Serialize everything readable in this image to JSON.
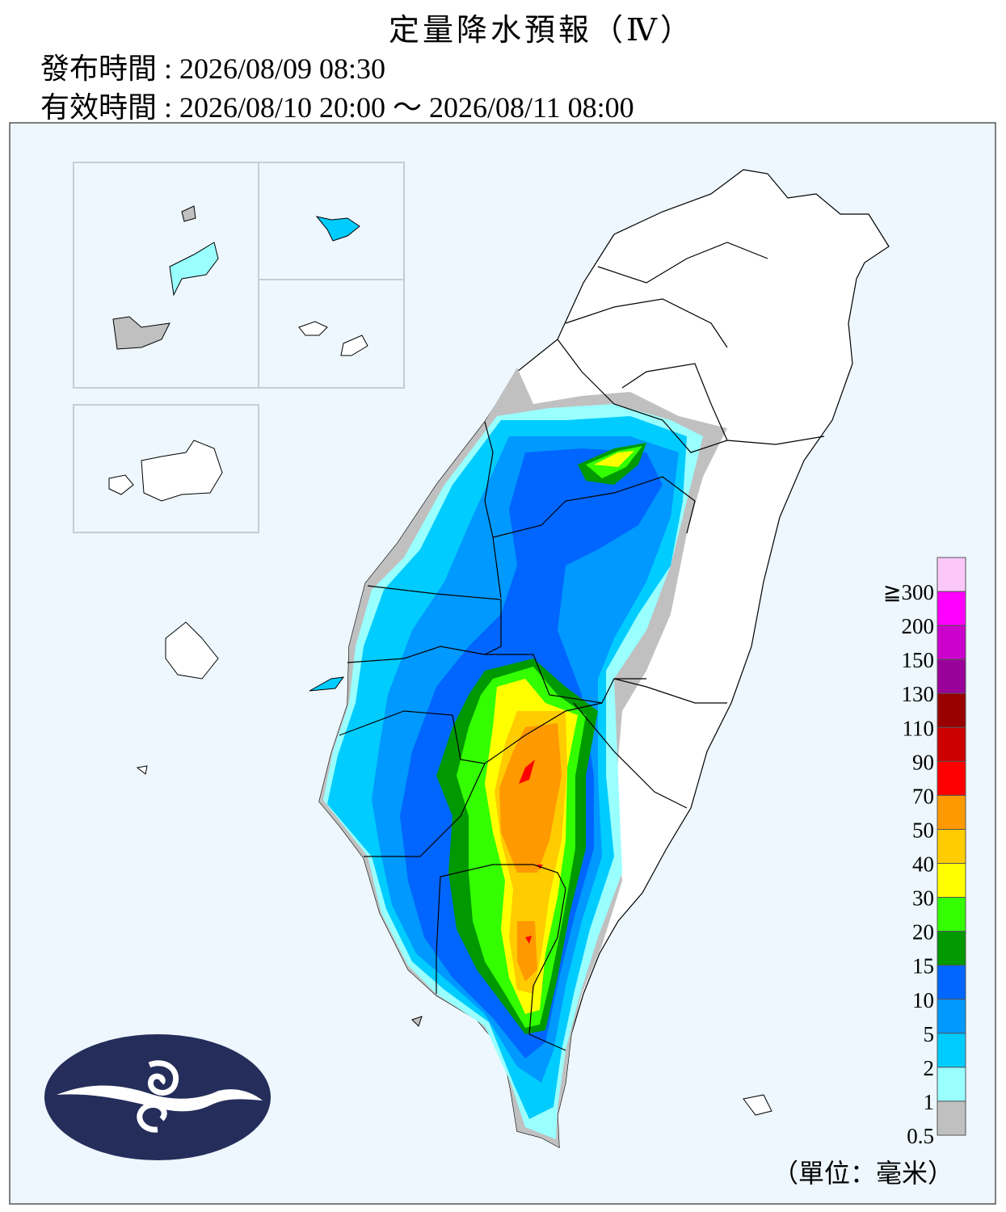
{
  "header": {
    "title": "定量降水預報（Ⅳ）",
    "issued": "發布時間 : 2026/08/09 08:30",
    "valid": "有效時間 : 2026/08/10 20:00 ～ 2026/08/11 08:00"
  },
  "legend": {
    "unit": "（單位：毫米）",
    "levels": [
      {
        "label": "≧300",
        "color": "#fcc8fa"
      },
      {
        "label": "200",
        "color": "#ff00ff"
      },
      {
        "label": "150",
        "color": "#cc00cc"
      },
      {
        "label": "130",
        "color": "#990099"
      },
      {
        "label": "110",
        "color": "#990000"
      },
      {
        "label": "90",
        "color": "#cc0000"
      },
      {
        "label": "70",
        "color": "#ff0000"
      },
      {
        "label": "50",
        "color": "#ff9900"
      },
      {
        "label": "40",
        "color": "#ffcc00"
      },
      {
        "label": "30",
        "color": "#ffff00"
      },
      {
        "label": "20",
        "color": "#33ff00"
      },
      {
        "label": "15",
        "color": "#009900"
      },
      {
        "label": "10",
        "color": "#0066ff"
      },
      {
        "label": "5",
        "color": "#0099ff"
      },
      {
        "label": "2",
        "color": "#00ccff"
      },
      {
        "label": "1",
        "color": "#99ffff"
      },
      {
        "label": "0.5",
        "color": "#c0c0c0"
      }
    ]
  }
}
